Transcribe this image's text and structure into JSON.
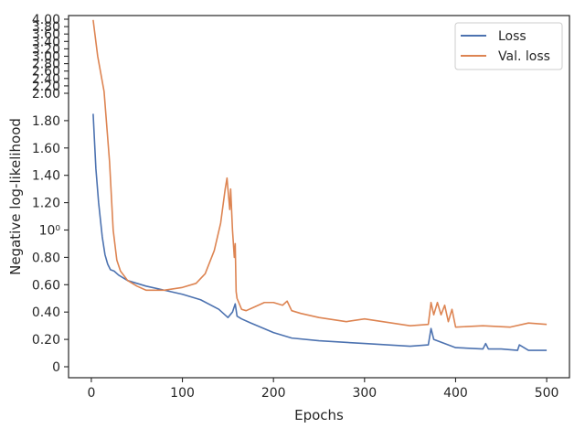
{
  "chart_data": {
    "type": "line",
    "title": "",
    "xlabel": "Epochs",
    "ylabel": "Negative log-likelihood",
    "xlim": [
      -25,
      525
    ],
    "ylim": [
      -0.12,
      4.02
    ],
    "x_ticks": [
      0,
      100,
      200,
      300,
      400,
      500
    ],
    "x_tick_labels": [
      "0",
      "100",
      "200",
      "300",
      "400",
      "500"
    ],
    "y_ticks": [
      0,
      0.2,
      0.4,
      0.6,
      0.8,
      1.0,
      1.2,
      1.4,
      1.6,
      1.8,
      2.0,
      2.2,
      2.4,
      2.6,
      2.8,
      3.0,
      3.2,
      3.4,
      3.6,
      3.8,
      4.0
    ],
    "y_tick_labels": [
      "0",
      "0.20",
      "0.40",
      "0.60",
      "0.80",
      "10⁰",
      "1.20",
      "1.40",
      "1.60",
      "1.80",
      "2.00",
      "2.20",
      "2.40",
      "2.60",
      "2.80",
      "3.00",
      "3.20",
      "3.40",
      "3.60",
      "3.80",
      "4.00"
    ],
    "scale_note": "symmetric-log style y axis: compressed above 2.0",
    "legend_position": "top-right",
    "grid": false,
    "series": [
      {
        "name": "Loss",
        "color": "#4c72b0",
        "x": [
          2,
          5,
          8,
          12,
          15,
          18,
          21,
          25,
          30,
          40,
          50,
          60,
          80,
          100,
          120,
          140,
          150,
          155,
          158,
          160,
          165,
          175,
          200,
          220,
          250,
          300,
          350,
          370,
          373,
          376,
          380,
          400,
          430,
          433,
          436,
          450,
          468,
          470,
          480,
          500
        ],
        "y": [
          1.85,
          1.45,
          1.2,
          0.95,
          0.82,
          0.75,
          0.71,
          0.7,
          0.67,
          0.63,
          0.61,
          0.59,
          0.56,
          0.53,
          0.49,
          0.42,
          0.36,
          0.4,
          0.46,
          0.37,
          0.35,
          0.32,
          0.25,
          0.21,
          0.19,
          0.17,
          0.15,
          0.16,
          0.28,
          0.2,
          0.19,
          0.14,
          0.13,
          0.17,
          0.13,
          0.13,
          0.12,
          0.16,
          0.12,
          0.12
        ]
      },
      {
        "name": "Val. loss",
        "color": "#dd8452",
        "x": [
          2,
          7,
          14,
          20,
          24,
          28,
          32,
          40,
          50,
          60,
          70,
          80,
          100,
          115,
          125,
          135,
          142,
          147,
          149,
          150,
          152,
          153,
          155,
          157,
          158,
          159,
          160,
          165,
          170,
          180,
          190,
          200,
          210,
          215,
          220,
          230,
          250,
          280,
          300,
          320,
          350,
          370,
          373,
          376,
          380,
          384,
          388,
          392,
          396,
          400,
          430,
          460,
          480,
          500
        ],
        "y": [
          3.98,
          3.0,
          2.05,
          1.5,
          1.0,
          0.78,
          0.7,
          0.63,
          0.59,
          0.56,
          0.56,
          0.56,
          0.58,
          0.61,
          0.68,
          0.85,
          1.05,
          1.3,
          1.38,
          1.3,
          1.15,
          1.3,
          1.0,
          0.8,
          0.9,
          0.55,
          0.5,
          0.42,
          0.41,
          0.44,
          0.47,
          0.47,
          0.45,
          0.48,
          0.41,
          0.39,
          0.36,
          0.33,
          0.35,
          0.33,
          0.3,
          0.31,
          0.47,
          0.38,
          0.47,
          0.38,
          0.45,
          0.33,
          0.42,
          0.29,
          0.3,
          0.29,
          0.32,
          0.31
        ]
      }
    ]
  }
}
